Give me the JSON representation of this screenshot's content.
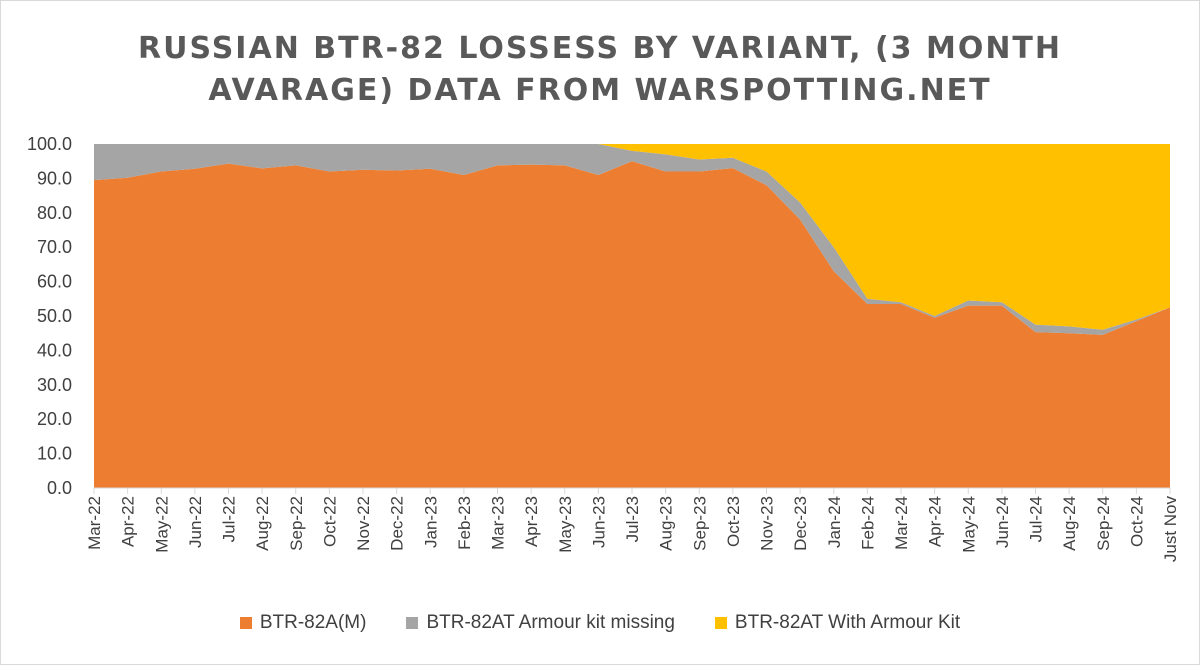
{
  "chart_data": {
    "type": "area",
    "stacked": true,
    "title_lines": [
      "RUSSIAN BTR-82 LOSSESS BY VARIANT, (3 MONTH",
      "AVARAGE) DATA FROM WARSPOTTING.NET"
    ],
    "categories": [
      "Mar-22",
      "Apr-22",
      "May-22",
      "Jun-22",
      "Jul-22",
      "Aug-22",
      "Sep-22",
      "Oct-22",
      "Nov-22",
      "Dec-22",
      "Jan-23",
      "Feb-23",
      "Mar-23",
      "Apr-23",
      "May-23",
      "Jun-23",
      "Jul-23",
      "Aug-23",
      "Sep-23",
      "Oct-23",
      "Nov-23",
      "Dec-23",
      "Jan-24",
      "Feb-24",
      "Mar-24",
      "Apr-24",
      "May-24",
      "Jun-24",
      "Jul-24",
      "Aug-24",
      "Sep-24",
      "Oct-24",
      "Just Nov"
    ],
    "y_ticks": [
      "0.0",
      "10.0",
      "20.0",
      "30.0",
      "40.0",
      "50.0",
      "60.0",
      "70.0",
      "80.0",
      "90.0",
      "100.0"
    ],
    "ylim": [
      0,
      100
    ],
    "series": [
      {
        "name": "BTR-82A(M)",
        "color": "#ed7d31",
        "values": [
          89.5,
          90.2,
          92.0,
          92.8,
          94.3,
          92.9,
          93.8,
          92.0,
          92.5,
          92.3,
          92.8,
          91.0,
          93.8,
          94.0,
          93.8,
          91.0,
          95.0,
          92.0,
          92.0,
          93.0,
          88.0,
          78.0,
          63.0,
          53.5,
          53.5,
          49.5,
          53.0,
          53.0,
          45.3,
          45.0,
          44.5,
          48.5,
          52.5
        ]
      },
      {
        "name": "BTR-82AT Armour kit missing",
        "color": "#a5a5a5",
        "values": [
          10.5,
          9.8,
          8.0,
          7.2,
          5.7,
          7.1,
          6.2,
          8.0,
          7.5,
          7.7,
          7.2,
          9.0,
          6.2,
          6.0,
          6.2,
          9.0,
          3.0,
          5.0,
          3.5,
          3.0,
          4.0,
          5.0,
          7.0,
          1.5,
          0.5,
          0.5,
          1.5,
          1.0,
          2.2,
          2.0,
          1.5,
          0.5,
          0.0
        ]
      },
      {
        "name": "BTR-82AT With Armour Kit",
        "color": "#ffc000",
        "values": [
          0,
          0,
          0,
          0,
          0,
          0,
          0,
          0,
          0,
          0,
          0,
          0,
          0,
          0,
          0,
          0,
          2.0,
          3.0,
          4.5,
          4.0,
          8.0,
          17.0,
          30.0,
          45.0,
          46.0,
          50.0,
          45.5,
          46.0,
          52.5,
          53.0,
          54.0,
          51.0,
          47.5
        ]
      }
    ]
  }
}
